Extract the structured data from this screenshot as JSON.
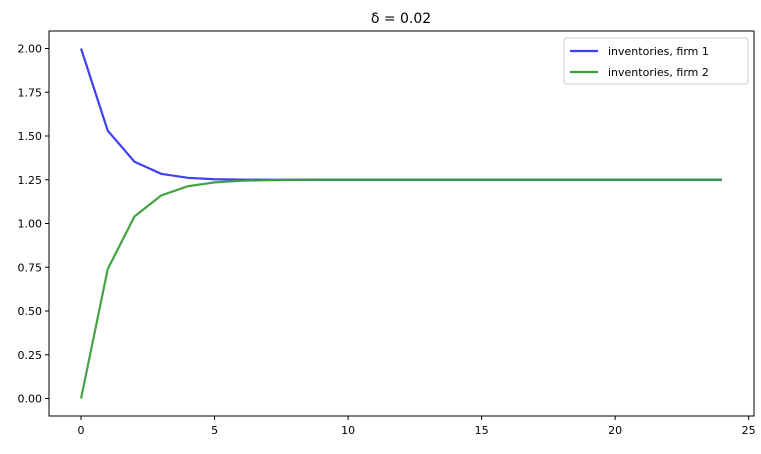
{
  "chart_data": {
    "type": "line",
    "title": "δ = 0.02",
    "xlabel": "",
    "ylabel": "",
    "xlim": [
      -1.2,
      25.2
    ],
    "ylim": [
      -0.1,
      2.1
    ],
    "xticks": [
      0,
      5,
      10,
      15,
      20,
      25
    ],
    "xtick_labels": [
      "0",
      "5",
      "10",
      "15",
      "20",
      "25"
    ],
    "yticks": [
      0,
      0.25,
      0.5,
      0.75,
      1.0,
      1.25,
      1.5,
      1.75,
      2.0
    ],
    "ytick_labels": [
      "0.00",
      "0.25",
      "0.50",
      "0.75",
      "1.00",
      "1.25",
      "1.50",
      "1.75",
      "2.00"
    ],
    "grid": false,
    "legend_position": "top-right",
    "x": [
      0,
      1,
      2,
      3,
      4,
      5,
      6,
      7,
      8,
      9,
      10,
      11,
      12,
      13,
      14,
      15,
      16,
      17,
      18,
      19,
      20,
      21,
      22,
      23,
      24
    ],
    "series": [
      {
        "name": "inventories, firm 1",
        "color": "#3f3ff5",
        "values": [
          2.0,
          1.53,
          1.353,
          1.284,
          1.261,
          1.253,
          1.251,
          1.25,
          1.25,
          1.25,
          1.25,
          1.25,
          1.25,
          1.25,
          1.25,
          1.25,
          1.25,
          1.25,
          1.25,
          1.25,
          1.25,
          1.25,
          1.25,
          1.25,
          1.25
        ]
      },
      {
        "name": "inventories, firm 2",
        "color": "#3a9e3a",
        "values": [
          0.0,
          0.74,
          1.04,
          1.16,
          1.213,
          1.235,
          1.244,
          1.248,
          1.249,
          1.25,
          1.25,
          1.25,
          1.25,
          1.25,
          1.25,
          1.25,
          1.25,
          1.25,
          1.25,
          1.25,
          1.25,
          1.25,
          1.25,
          1.25,
          1.25
        ]
      }
    ]
  }
}
